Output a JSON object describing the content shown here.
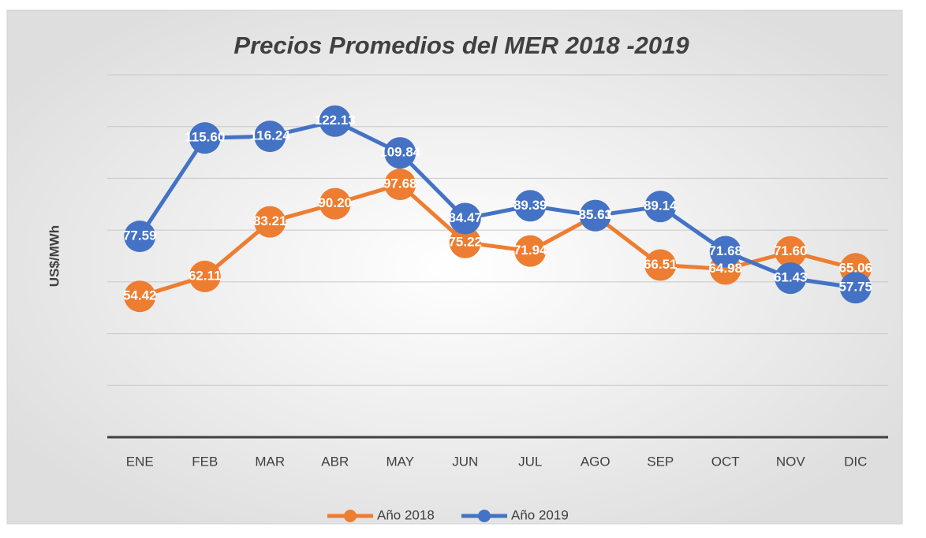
{
  "chart_data": {
    "type": "line",
    "title": "Precios Promedios del MER 2018 -2019",
    "ylabel": "US$/MWh",
    "categories": [
      "ENE",
      "FEB",
      "MAR",
      "ABR",
      "MAY",
      "JUN",
      "JUL",
      "AGO",
      "SEP",
      "OCT",
      "NOV",
      "DIC"
    ],
    "series": [
      {
        "name": "Año 2018",
        "color": "#ed7d31",
        "values": [
          54.42,
          62.11,
          83.21,
          90.2,
          97.68,
          75.22,
          71.94,
          85.61,
          66.51,
          64.98,
          71.6,
          65.06
        ],
        "value_labels": [
          "54.42",
          "62.11",
          "83.21",
          "90.20",
          "97.68",
          "75.22",
          "71.94",
          "85.61",
          "66.51",
          "64.98",
          "71.60",
          "65.06"
        ]
      },
      {
        "name": "Año 2019",
        "color": "#4472c4",
        "values": [
          77.59,
          115.6,
          116.24,
          122.13,
          109.84,
          84.47,
          89.39,
          85.63,
          89.14,
          71.68,
          61.43,
          57.75
        ],
        "value_labels": [
          "77.59",
          "115.60",
          "116.24",
          "122.13",
          "109.84",
          "84.47",
          "89.39",
          "85.63",
          "89.14",
          "71.68",
          "61.43",
          "57.75"
        ]
      }
    ],
    "ylim": [
      0,
      140
    ],
    "yticks": [
      0,
      20,
      40,
      60,
      80,
      100,
      120,
      140
    ],
    "grid": true,
    "legend": "bottom"
  }
}
